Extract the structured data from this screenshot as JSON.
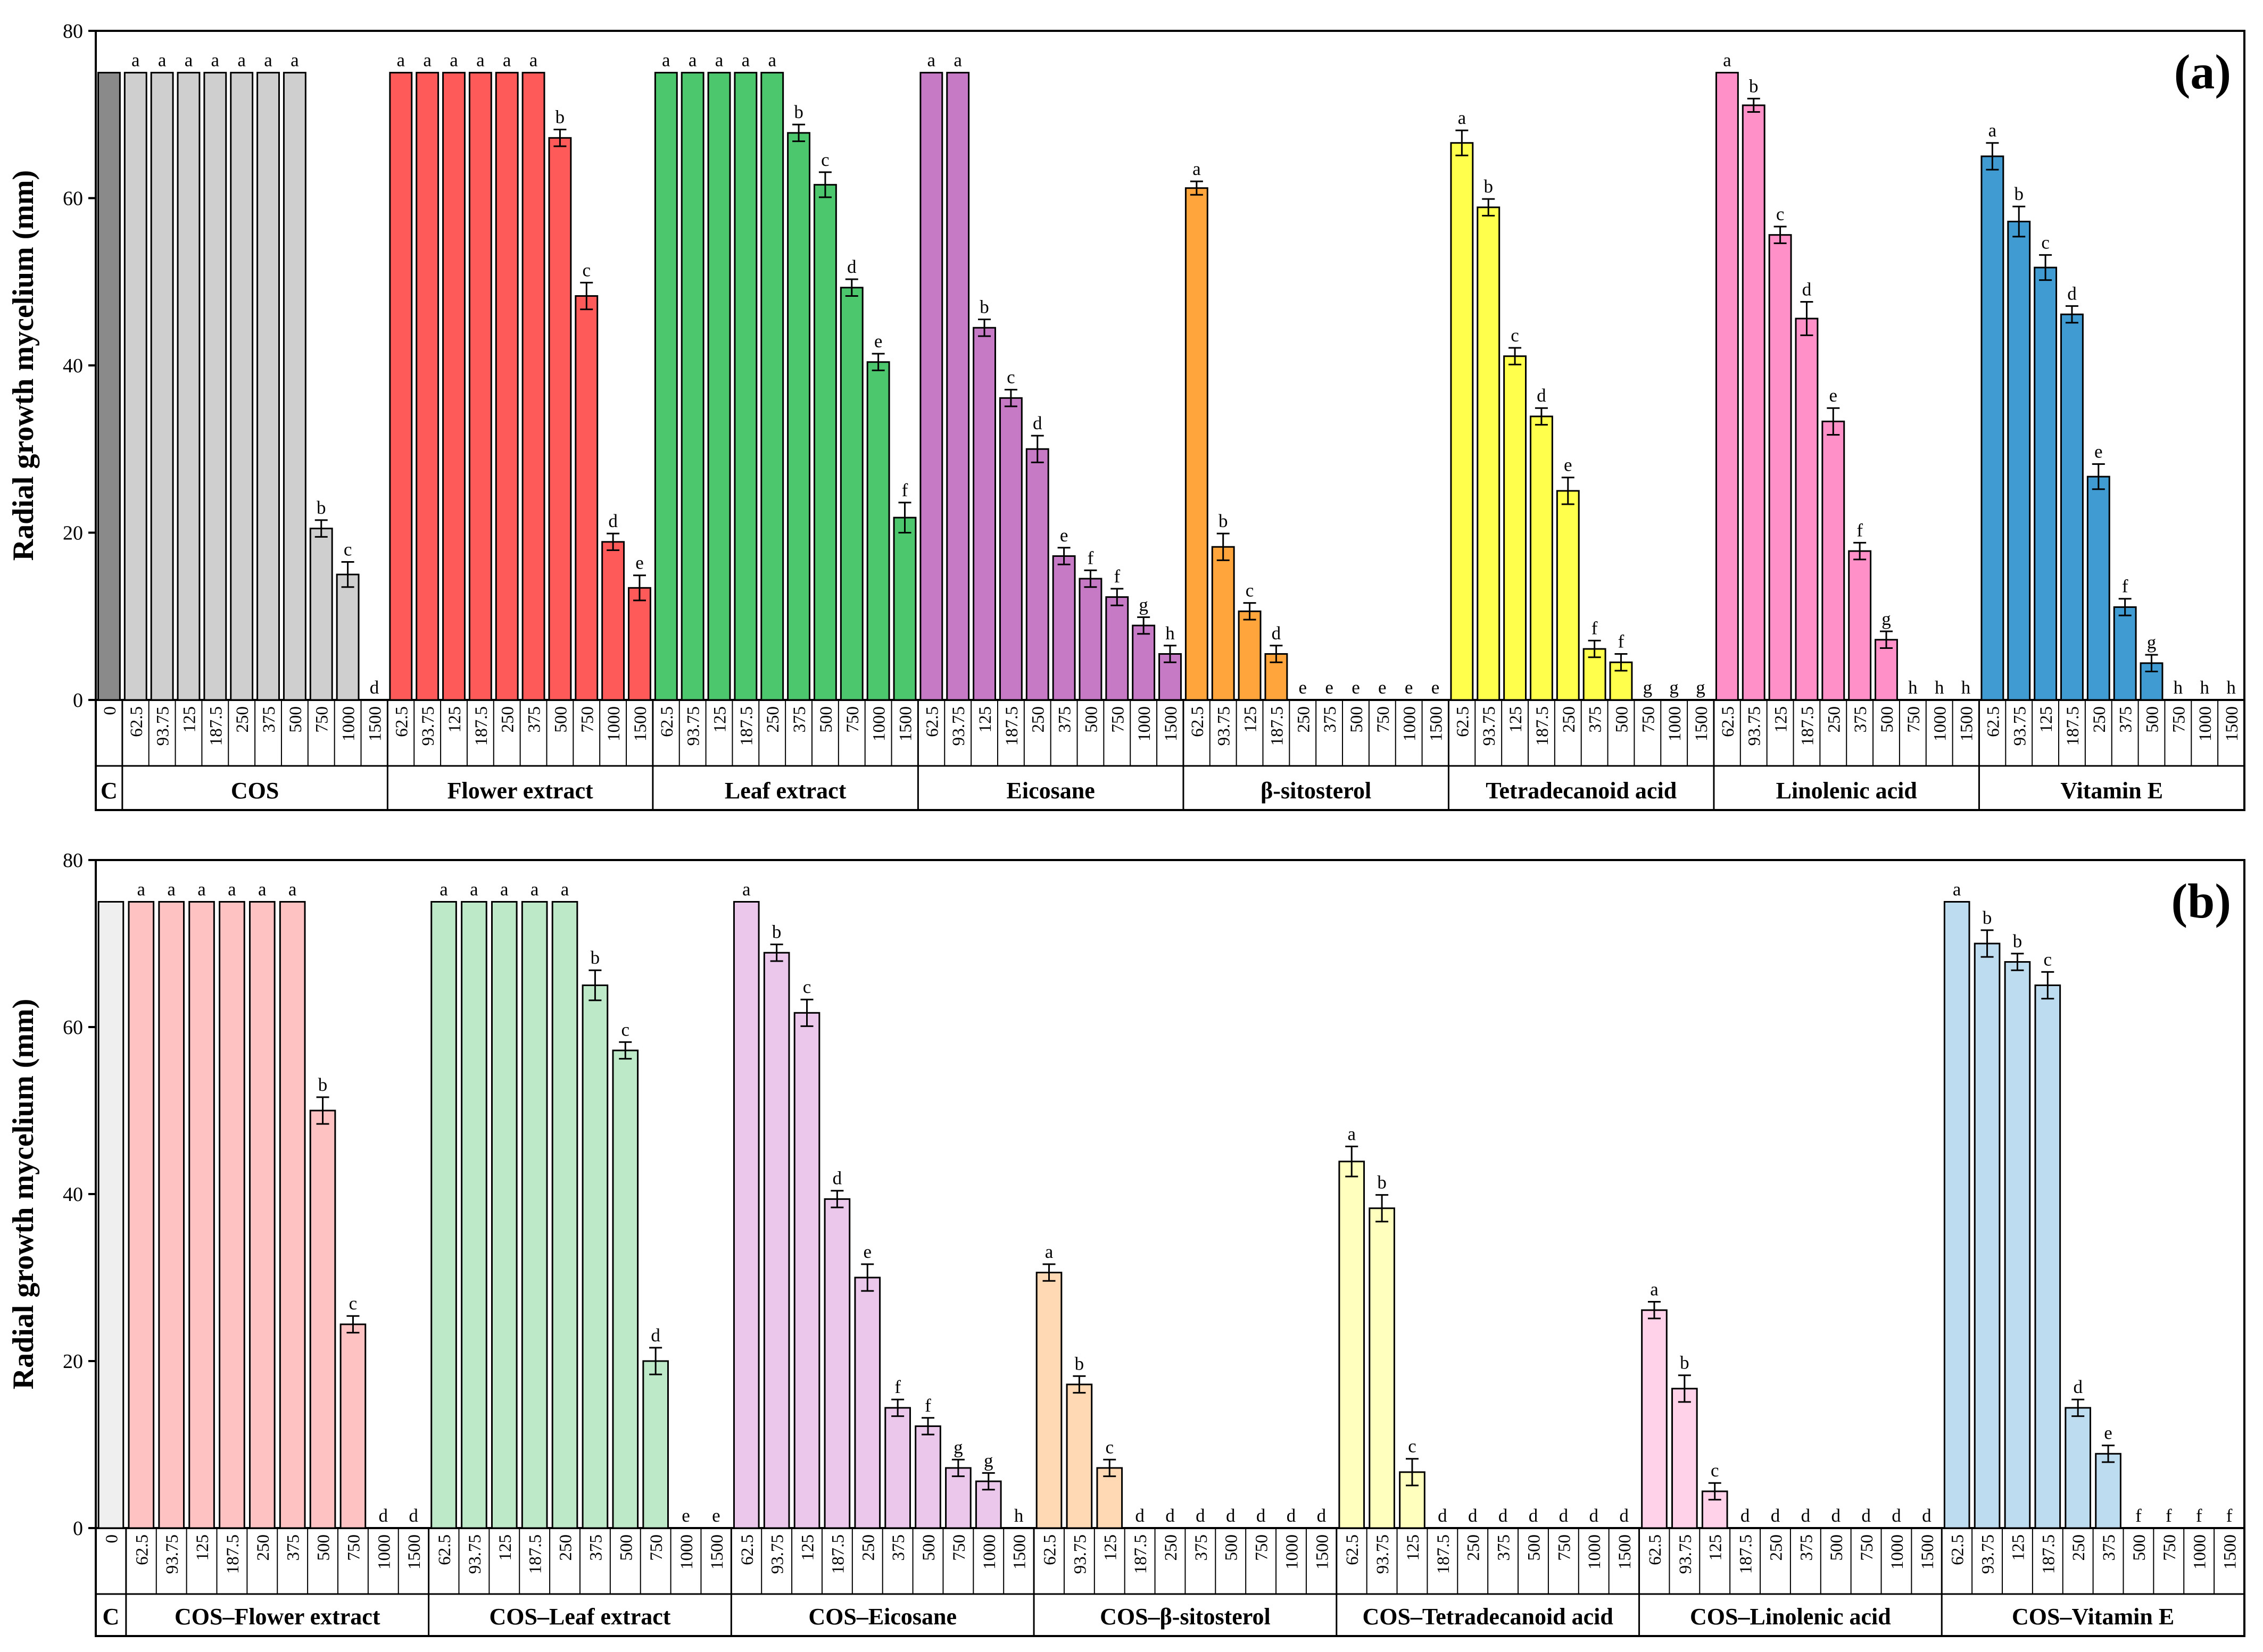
{
  "chart_data": [
    {
      "type": "bar",
      "panel_label": "(a)",
      "ylabel": "Radial growth mycelium (mm)",
      "ylim": [
        0,
        80
      ],
      "yticks": [
        "0",
        "20",
        "40",
        "60",
        "80"
      ],
      "control": {
        "label": "C",
        "conc": "0",
        "value": 75,
        "letter": "",
        "color": "#8a8a8a"
      },
      "groups": [
        {
          "name": "COS",
          "color": "#cfcfcf",
          "conc": [
            "62.5",
            "93.75",
            "125",
            "187.5",
            "250",
            "375",
            "500",
            "750",
            "1000",
            "1500"
          ],
          "values": [
            75,
            75,
            75,
            75,
            75,
            75,
            75,
            20.5,
            15,
            0
          ],
          "errors": [
            0,
            0,
            0,
            0,
            0,
            0,
            0,
            1.0,
            1.5,
            0
          ],
          "letters": [
            "a",
            "a",
            "a",
            "a",
            "a",
            "a",
            "a",
            "b",
            "c",
            "d"
          ]
        },
        {
          "name": "Flower extract",
          "color": "#ff5a5a",
          "conc": [
            "62.5",
            "93.75",
            "125",
            "187.5",
            "250",
            "375",
            "500",
            "750",
            "1000",
            "1500"
          ],
          "values": [
            75,
            75,
            75,
            75,
            75,
            75,
            67.2,
            48.3,
            18.9,
            13.4
          ],
          "errors": [
            0,
            0,
            0,
            0,
            0,
            0,
            1.0,
            1.6,
            1.0,
            1.5
          ],
          "letters": [
            "a",
            "a",
            "a",
            "a",
            "a",
            "a",
            "b",
            "c",
            "d",
            "e"
          ]
        },
        {
          "name": "Leaf extract",
          "color": "#4cc76e",
          "conc": [
            "62.5",
            "93.75",
            "125",
            "187.5",
            "250",
            "375",
            "500",
            "750",
            "1000",
            "1500"
          ],
          "values": [
            75,
            75,
            75,
            75,
            75,
            67.8,
            61.6,
            49.3,
            40.4,
            21.8
          ],
          "errors": [
            0,
            0,
            0,
            0,
            0,
            1.0,
            1.5,
            1.0,
            1.0,
            1.8
          ],
          "letters": [
            "a",
            "a",
            "a",
            "a",
            "a",
            "b",
            "c",
            "d",
            "e",
            "f"
          ]
        },
        {
          "name": "Eicosane",
          "color": "#c67ac6",
          "conc": [
            "62.5",
            "93.75",
            "125",
            "187.5",
            "250",
            "375",
            "500",
            "750",
            "1000",
            "1500"
          ],
          "values": [
            75,
            75,
            44.5,
            36.1,
            30.0,
            17.2,
            14.5,
            12.3,
            8.9,
            5.5
          ],
          "errors": [
            0,
            0,
            1.0,
            1.0,
            1.6,
            1.0,
            1.0,
            1.0,
            1.0,
            1.0
          ],
          "letters": [
            "a",
            "a",
            "b",
            "c",
            "d",
            "e",
            "f",
            "f",
            "g",
            "h"
          ]
        },
        {
          "name": "β-sitosterol",
          "color": "#ffa53c",
          "conc": [
            "62.5",
            "93.75",
            "125",
            "187.5",
            "250",
            "375",
            "500",
            "750",
            "1000",
            "1500"
          ],
          "values": [
            61.2,
            18.3,
            10.6,
            5.5,
            0,
            0,
            0,
            0,
            0,
            0
          ],
          "errors": [
            0.8,
            1.6,
            1.0,
            1.0,
            0,
            0,
            0,
            0,
            0,
            0
          ],
          "letters": [
            "a",
            "b",
            "c",
            "d",
            "e",
            "e",
            "e",
            "e",
            "e",
            "e"
          ]
        },
        {
          "name": "Tetradecanoid acid",
          "color": "#ffff4c",
          "conc": [
            "62.5",
            "93.75",
            "125",
            "187.5",
            "250",
            "375",
            "500",
            "750",
            "1000",
            "1500"
          ],
          "values": [
            66.6,
            58.9,
            41.1,
            33.9,
            25.0,
            6.1,
            4.5,
            0,
            0,
            0
          ],
          "errors": [
            1.5,
            1.0,
            1.0,
            1.0,
            1.6,
            1.0,
            1.0,
            0,
            0,
            0
          ],
          "letters": [
            "a",
            "b",
            "c",
            "d",
            "e",
            "f",
            "f",
            "g",
            "g",
            "g"
          ]
        },
        {
          "name": "Linolenic acid",
          "color": "#ff90c8",
          "conc": [
            "62.5",
            "93.75",
            "125",
            "187.5",
            "250",
            "375",
            "500",
            "750",
            "1000",
            "1500"
          ],
          "values": [
            75,
            71.1,
            55.6,
            45.6,
            33.3,
            17.8,
            7.2,
            0,
            0,
            0
          ],
          "errors": [
            0,
            0.8,
            1.0,
            2.0,
            1.6,
            1.0,
            1.0,
            0,
            0,
            0
          ],
          "letters": [
            "a",
            "b",
            "c",
            "d",
            "e",
            "f",
            "g",
            "h",
            "h",
            "h"
          ]
        },
        {
          "name": "Vitamin E",
          "color": "#3f9bd2",
          "conc": [
            "62.5",
            "93.75",
            "125",
            "187.5",
            "250",
            "375",
            "500",
            "750",
            "1000",
            "1500"
          ],
          "values": [
            65.0,
            57.2,
            51.7,
            46.1,
            26.7,
            11.1,
            4.4,
            0,
            0,
            0
          ],
          "errors": [
            1.6,
            1.8,
            1.5,
            1.0,
            1.5,
            1.0,
            1.0,
            0,
            0,
            0
          ],
          "letters": [
            "a",
            "b",
            "c",
            "d",
            "e",
            "f",
            "g",
            "h",
            "h",
            "h"
          ]
        }
      ]
    },
    {
      "type": "bar",
      "panel_label": "(b)",
      "ylabel": "Radial growth mycelium (mm)",
      "ylim": [
        0,
        80
      ],
      "yticks": [
        "0",
        "20",
        "40",
        "60",
        "80"
      ],
      "control": {
        "label": "C",
        "conc": "0",
        "value": 75,
        "letter": "",
        "color": "#efefef"
      },
      "groups": [
        {
          "name": "COS–Flower extract",
          "color": "#ffc2c2",
          "conc": [
            "62.5",
            "93.75",
            "125",
            "187.5",
            "250",
            "375",
            "500",
            "750",
            "1000",
            "1500"
          ],
          "values": [
            75,
            75,
            75,
            75,
            75,
            75,
            50.0,
            24.4,
            0,
            0
          ],
          "errors": [
            0,
            0,
            0,
            0,
            0,
            0,
            1.6,
            1.0,
            0,
            0
          ],
          "letters": [
            "a",
            "a",
            "a",
            "a",
            "a",
            "a",
            "b",
            "c",
            "d",
            "d"
          ]
        },
        {
          "name": "COS–Leaf extract",
          "color": "#bde9c8",
          "conc": [
            "62.5",
            "93.75",
            "125",
            "187.5",
            "250",
            "375",
            "500",
            "750",
            "1000",
            "1500"
          ],
          "values": [
            75,
            75,
            75,
            75,
            75,
            65.0,
            57.2,
            20.0,
            0,
            0
          ],
          "errors": [
            0,
            0,
            0,
            0,
            0,
            1.8,
            1.0,
            1.6,
            0,
            0
          ],
          "letters": [
            "a",
            "a",
            "a",
            "a",
            "a",
            "b",
            "c",
            "d",
            "e",
            "e"
          ]
        },
        {
          "name": "COS–Eicosane",
          "color": "#ebc8eb",
          "conc": [
            "62.5",
            "93.75",
            "125",
            "187.5",
            "250",
            "375",
            "500",
            "750",
            "1000",
            "1500"
          ],
          "values": [
            75,
            68.9,
            61.7,
            39.4,
            30.0,
            14.4,
            12.2,
            7.2,
            5.6,
            0
          ],
          "errors": [
            0,
            1.0,
            1.6,
            1.0,
            1.6,
            1.0,
            1.0,
            1.0,
            1.0,
            0
          ],
          "letters": [
            "a",
            "b",
            "c",
            "d",
            "e",
            "f",
            "f",
            "g",
            "g",
            "h"
          ]
        },
        {
          "name": "COS–β-sitosterol",
          "color": "#ffd9b4",
          "conc": [
            "62.5",
            "93.75",
            "125",
            "187.5",
            "250",
            "375",
            "500",
            "750",
            "1000",
            "1500"
          ],
          "values": [
            30.6,
            17.2,
            7.2,
            0,
            0,
            0,
            0,
            0,
            0,
            0
          ],
          "errors": [
            1.0,
            1.0,
            1.0,
            0,
            0,
            0,
            0,
            0,
            0,
            0
          ],
          "letters": [
            "a",
            "b",
            "c",
            "d",
            "d",
            "d",
            "d",
            "d",
            "d",
            "d"
          ]
        },
        {
          "name": "COS–Tetradecanoid acid",
          "color": "#ffffbe",
          "conc": [
            "62.5",
            "93.75",
            "125",
            "187.5",
            "250",
            "375",
            "500",
            "750",
            "1000",
            "1500"
          ],
          "values": [
            43.9,
            38.3,
            6.7,
            0,
            0,
            0,
            0,
            0,
            0,
            0
          ],
          "errors": [
            1.8,
            1.6,
            1.6,
            0,
            0,
            0,
            0,
            0,
            0,
            0
          ],
          "letters": [
            "a",
            "b",
            "c",
            "d",
            "d",
            "d",
            "d",
            "d",
            "d",
            "d"
          ]
        },
        {
          "name": "COS–Linolenic acid",
          "color": "#ffd2ea",
          "conc": [
            "62.5",
            "93.75",
            "125",
            "187.5",
            "250",
            "375",
            "500",
            "750",
            "1000",
            "1500"
          ],
          "values": [
            26.1,
            16.7,
            4.4,
            0,
            0,
            0,
            0,
            0,
            0,
            0
          ],
          "errors": [
            1.0,
            1.6,
            1.0,
            0,
            0,
            0,
            0,
            0,
            0,
            0
          ],
          "letters": [
            "a",
            "b",
            "c",
            "d",
            "d",
            "d",
            "d",
            "d",
            "d",
            "d"
          ]
        },
        {
          "name": "COS–Vitamin E",
          "color": "#bedcf0",
          "conc": [
            "62.5",
            "93.75",
            "125",
            "187.5",
            "250",
            "375",
            "500",
            "750",
            "1000",
            "1500"
          ],
          "values": [
            75,
            70.0,
            67.8,
            65.0,
            14.4,
            8.9,
            0,
            0,
            0,
            0
          ],
          "errors": [
            0,
            1.6,
            1.0,
            1.6,
            1.0,
            1.0,
            0,
            0,
            0,
            0
          ],
          "letters": [
            "a",
            "b",
            "b",
            "c",
            "d",
            "e",
            "f",
            "f",
            "f",
            "f"
          ]
        }
      ]
    }
  ]
}
